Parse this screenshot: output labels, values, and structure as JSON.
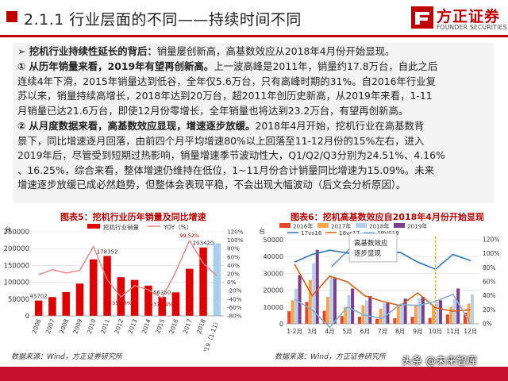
{
  "header": {
    "title": "2.1.1  行业层面的不同——持续时间不同",
    "logo_cn": "方正证券",
    "logo_en": "FOUNDER SECURITIES"
  },
  "text": {
    "p1_lead": "挖机行业持续性延长的背后：",
    "p1_rest": "销量屡创新高，高基数效应从2018年4月份开始显现。",
    "p2_num": "①",
    "p2_lead": "从历年销量来看，2019年有望再创新高。",
    "p2_rest1": "上一波高峰是2011年，销量约17.8万台，自此之后",
    "p2_line2": "连续4年下滑，2015年销量达到低谷，全年仅5.6万台，只有高峰时期的31%。自2016年行业复",
    "p2_line3": "苏以来，销量持续高增长，2018年达到20万台，超2011年创历史新高，从2019年来看，1-11",
    "p2_line4": "月销量已达21.6万台，即使12月份零增长，全年销量也将达到23.2万台，有望再创新高。",
    "p3_num": "②",
    "p3_lead": "从月度数据来看，高基数效应显现，增速逐步放缓。",
    "p3_rest1": "2018年4月开始，挖机行业在高基数背",
    "p3_line2": "景下，同比增速逐月回落，由前四个月平均增速80%以上回落至11-12月份的15%左右，进入",
    "p3_line3": "2019年后，尽管受到短期过热影响，销量增速季节波动性大，Q1/Q2/Q3分别为24.51%、4.16%",
    "p3_line4": "、16.25%，综合来看，整体增速仍维持在低位，1~11月份合计销量同比增速为15.09%。未来",
    "p3_line5": "增速逐步放缓已成必然趋势，但整体会表现平稳，不会出现大幅波动（后文会分析原因）。"
  },
  "chart1_title": "图表5：挖机行业历年销量及同比增速",
  "chart2_title": "图表6：挖机高基数效应自2018年4月份开始显现",
  "source1": "数据来源：Wind，方正证券研究所",
  "source2": "数据来源：Wind，方正证券研究所",
  "watermark": "头条 @未来智库",
  "colors": {
    "brand_red": "#c00000",
    "bar_red": "#e00000",
    "bar_blue": "#a8cff0",
    "text_bg": "#f3f3f3"
  },
  "chart_data": [
    {
      "type": "bar",
      "title": "",
      "ylabel": "台",
      "categories": [
        "2006",
        "2007",
        "2008",
        "2009",
        "2010",
        "2011",
        "2012",
        "2013",
        "2014",
        "2015",
        "2016",
        "2017",
        "2018",
        "2019（1-11）"
      ],
      "yticks_left": [
        "0",
        "50000",
        "100000",
        "150000",
        "200000",
        "250000"
      ],
      "yticks_right": [
        "-80%",
        "-60%",
        "-40%",
        "-20%",
        "0%",
        "20%",
        "40%",
        "60%",
        "80%",
        "100%",
        "120%"
      ],
      "ylim_left": [
        0,
        250000
      ],
      "ylim_right": [
        -0.8,
        1.2
      ],
      "series": [
        {
          "name": "挖机行业销量",
          "kind": "bar",
          "values": [
            45702,
            56000,
            71000,
            96000,
            168000,
            178352,
            115000,
            107000,
            90000,
            56350,
            70000,
            140000,
            203420,
            216000
          ],
          "labels": [
            "45702",
            "",
            "",
            "",
            "",
            "178352",
            "",
            "",
            "",
            "56350",
            "",
            "",
            "203420",
            ""
          ]
        },
        {
          "name": "YOY（%）",
          "kind": "line",
          "values": [
            0.18,
            0.3,
            0.22,
            0.28,
            0.85,
            0.06,
            -0.3518,
            -0.08,
            -0.18,
            -0.3774,
            0.25,
            0.9952,
            0.45,
            0.15
          ],
          "labels": [
            "",
            "",
            "",
            "",
            "",
            "",
            "-35.18%",
            "",
            "",
            "-37.74%",
            "",
            "99.52%",
            "",
            ""
          ]
        }
      ]
    },
    {
      "type": "bar",
      "title": "",
      "ylabel": "台",
      "categories": [
        "1-2月",
        "3月",
        "4月",
        "5月",
        "6月",
        "7月",
        "8月",
        "9月",
        "10月",
        "11月",
        "12月"
      ],
      "yticks_left": [
        "0",
        "10000",
        "20000",
        "30000",
        "40000",
        "50000"
      ],
      "yticks_right": [
        "0%",
        "20%",
        "40%",
        "60%",
        "80%",
        "100%",
        "120%"
      ],
      "ylim_left": [
        0,
        50000
      ],
      "ylim_right": [
        0,
        1.2
      ],
      "legend": "top",
      "annotation": "高基数效应逐步显现",
      "series": [
        {
          "name": "2016年",
          "kind": "bar",
          "color": "#e8452c",
          "values": [
            7500,
            13000,
            7800,
            4600,
            4200,
            3000,
            3300,
            4200,
            3500,
            5500,
            6700
          ]
        },
        {
          "name": "2017年",
          "kind": "bar",
          "color": "#f7a44a",
          "values": [
            14000,
            26000,
            16000,
            10000,
            11000,
            9000,
            11000,
            11500,
            10500,
            10000,
            12000
          ]
        },
        {
          "name": "2018年",
          "kind": "bar",
          "color": "#b7cfe8",
          "values": [
            21000,
            36000,
            28000,
            17000,
            14000,
            12000,
            11700,
            15000,
            13000,
            14500,
            17500
          ]
        },
        {
          "name": "2019年",
          "kind": "bar",
          "color": "#7a3f8e",
          "values": [
            29000,
            44000,
            27000,
            21000,
            16500,
            12800,
            15000,
            16000,
            14000,
            21000,
            0
          ]
        },
        {
          "name": "17vs16",
          "kind": "line",
          "color": "#2e75b6",
          "values": [
            0.88,
            0.99,
            1.05,
            1.01,
            0.96,
            1.0,
            1.02,
            0.88,
            0.78,
            0.99,
            0.9
          ]
        },
        {
          "name": "18vs17",
          "kind": "line",
          "color": "#d95f0e",
          "values": [
            0.85,
            0.4,
            0.68,
            0.6,
            0.4,
            0.32,
            0.26,
            0.44,
            0.23,
            0.18,
            0.2
          ]
        },
        {
          "name": "19VS18",
          "kind": "line",
          "color": "#7fb3d5",
          "values": [
            0.35,
            0.2,
            -0.05,
            0.24,
            0.12,
            0.08,
            0.28,
            0.26,
            0.32,
            0.42,
            0.0
          ]
        }
      ]
    }
  ]
}
